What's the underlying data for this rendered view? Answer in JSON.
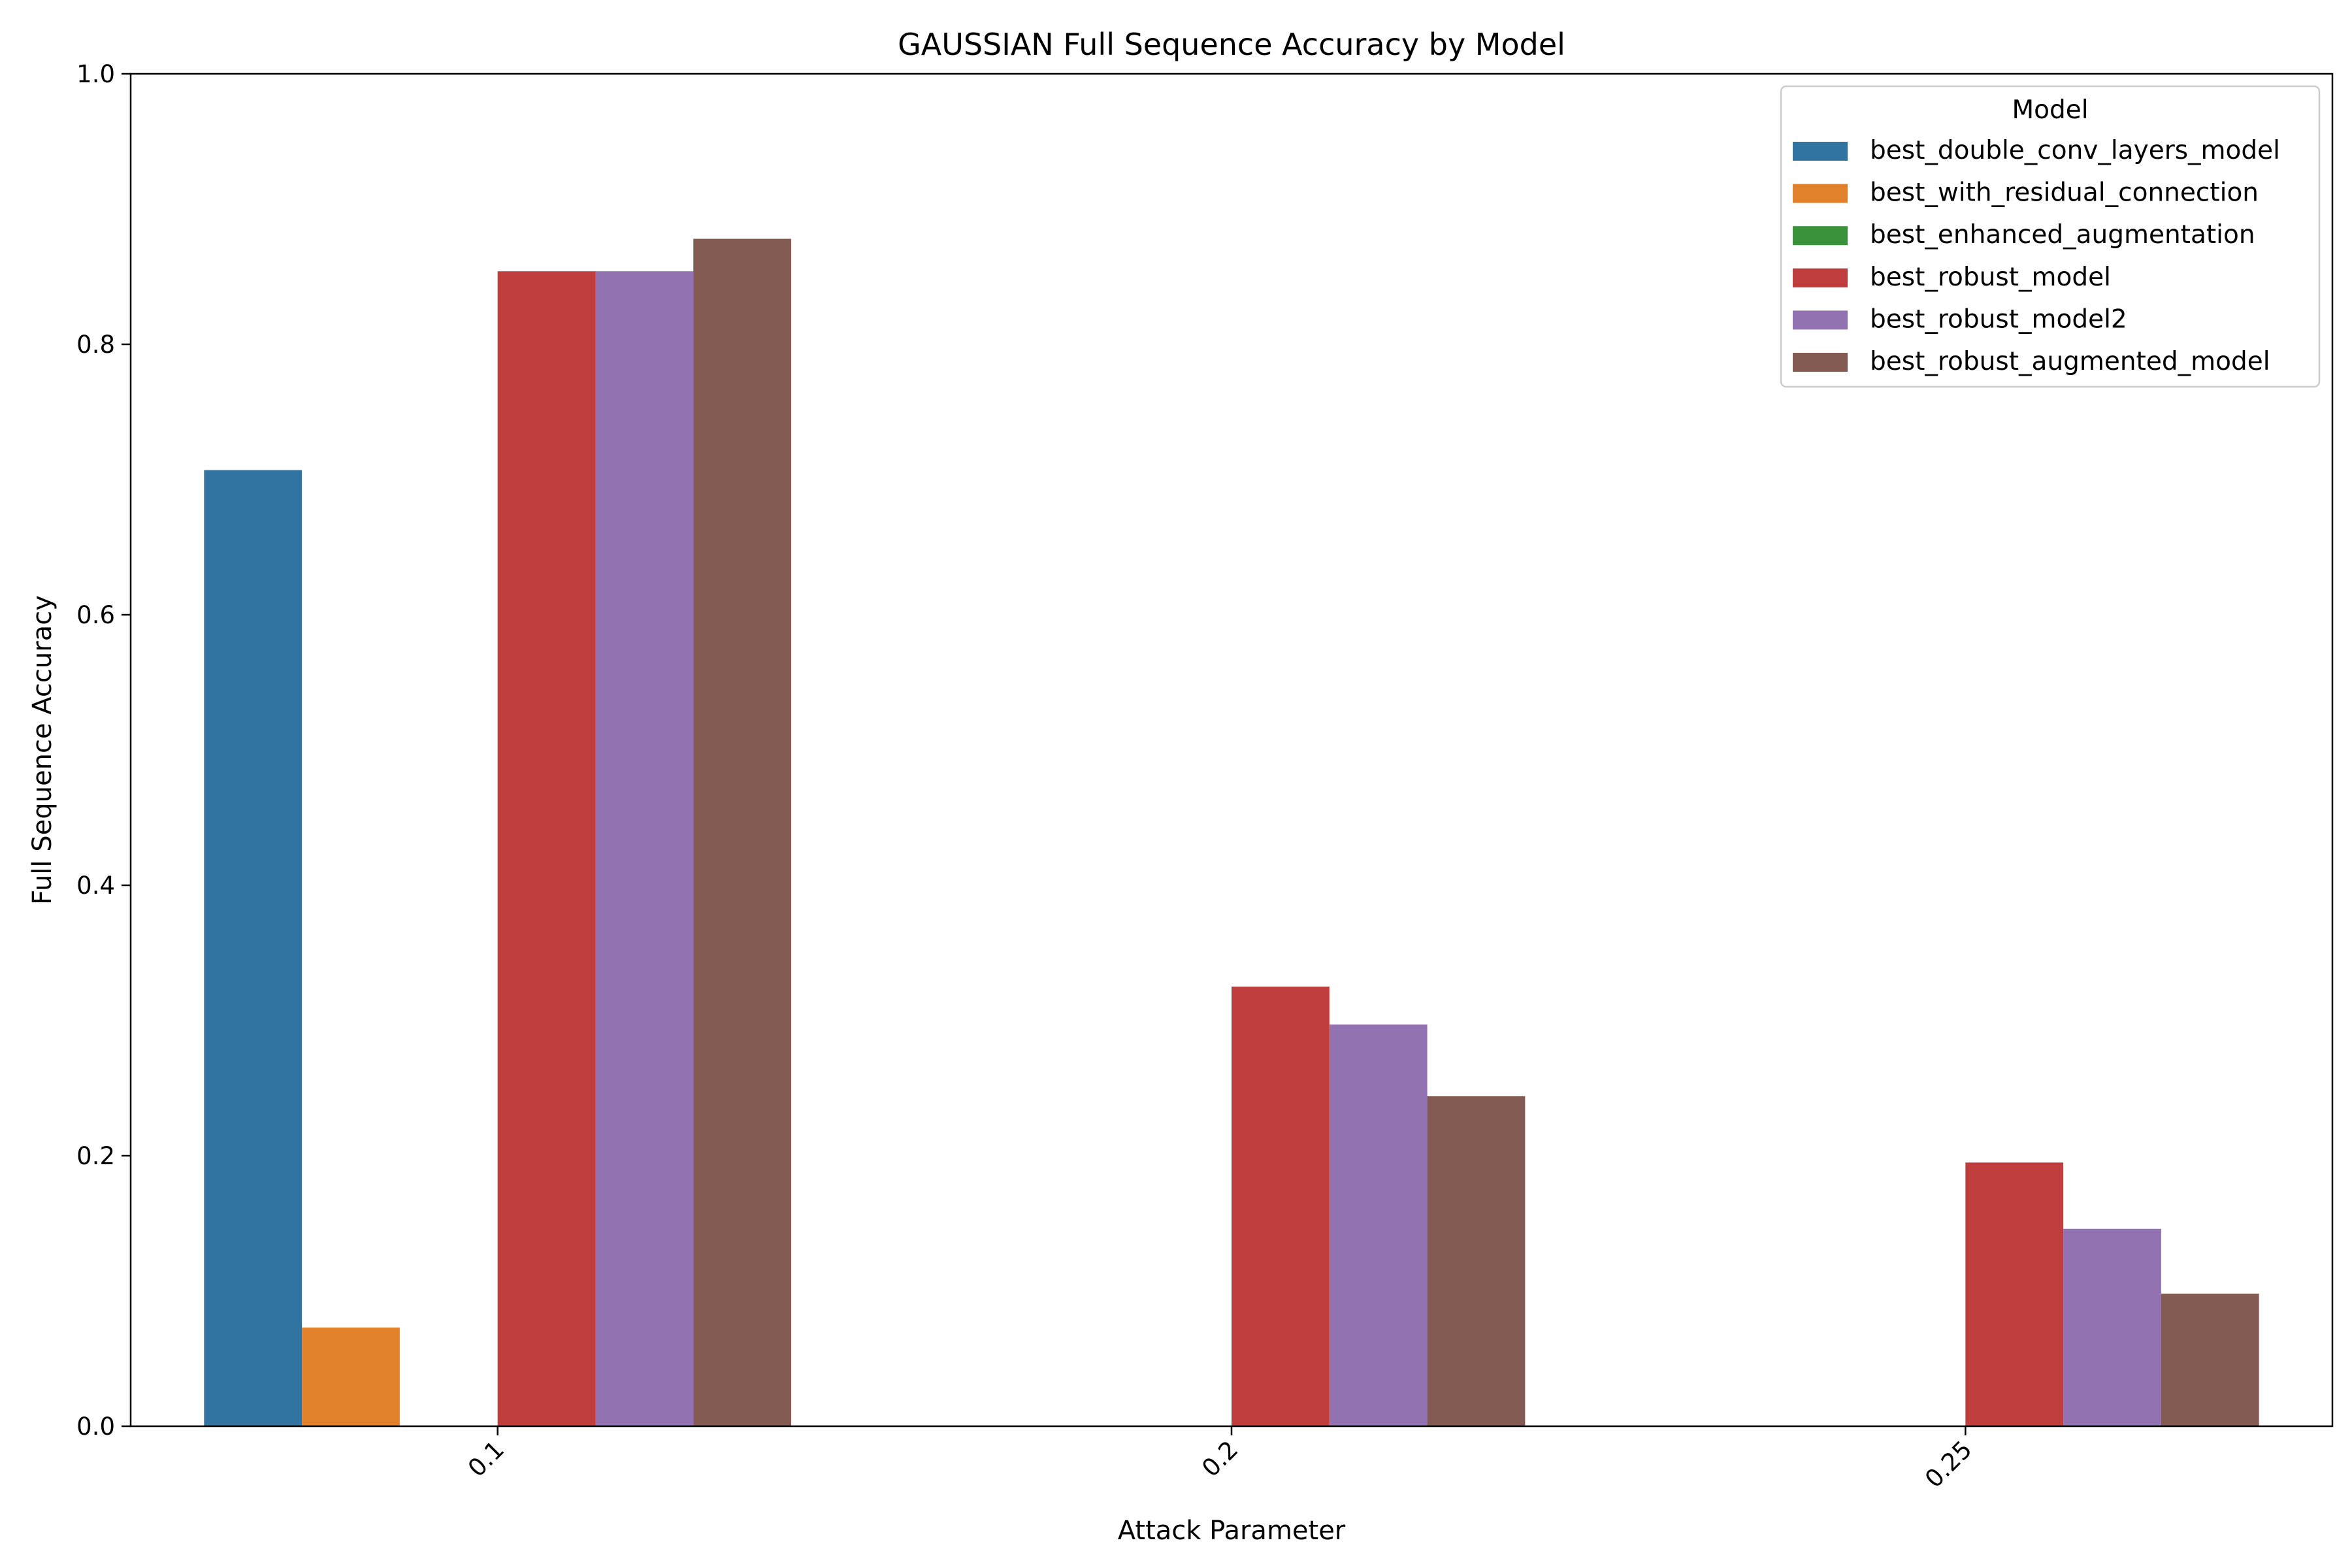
{
  "chart_data": {
    "type": "bar",
    "title": "GAUSSIAN Full Sequence Accuracy by Model",
    "xlabel": "Attack Parameter",
    "ylabel": "Full Sequence Accuracy",
    "categories": [
      "0.1",
      "0.2",
      "0.25"
    ],
    "ylim": [
      0,
      1.0
    ],
    "yticks": [
      "0.0",
      "0.2",
      "0.4",
      "0.6",
      "0.8",
      "1.0"
    ],
    "grid": false,
    "legend_title": "Model",
    "legend_position": "top-right",
    "series": [
      {
        "name": "best_double_conv_layers_model",
        "color": "#3274a1",
        "values": [
          0.707,
          0,
          0
        ]
      },
      {
        "name": "best_with_residual_connection",
        "color": "#e1812c",
        "values": [
          0.073,
          0,
          0
        ]
      },
      {
        "name": "best_enhanced_augmentation",
        "color": "#3a923a",
        "values": [
          0,
          0,
          0
        ]
      },
      {
        "name": "best_robust_model",
        "color": "#c03d3e",
        "values": [
          0.854,
          0.325,
          0.195
        ]
      },
      {
        "name": "best_robust_model2",
        "color": "#9372b2",
        "values": [
          0.854,
          0.297,
          0.146
        ]
      },
      {
        "name": "best_robust_augmented_model",
        "color": "#845b53",
        "values": [
          0.878,
          0.244,
          0.098
        ]
      }
    ]
  }
}
